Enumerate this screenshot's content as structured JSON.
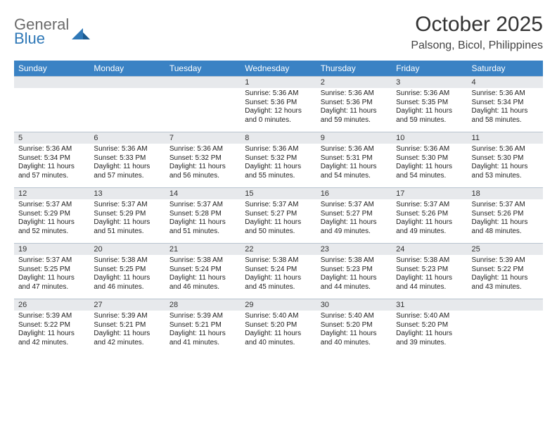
{
  "logo": {
    "line1": "General",
    "line2": "Blue"
  },
  "title": "October 2025",
  "location": "Palsong, Bicol, Philippines",
  "colors": {
    "header_bg": "#3a82c4",
    "header_text": "#ffffff",
    "daynum_bg": "#e7e9ec",
    "border": "#b9c4cf",
    "logo_gray": "#6b6b6b",
    "logo_blue": "#2f78b7"
  },
  "day_headers": [
    "Sunday",
    "Monday",
    "Tuesday",
    "Wednesday",
    "Thursday",
    "Friday",
    "Saturday"
  ],
  "weeks": [
    [
      {
        "n": "",
        "sr": "",
        "ss": "",
        "dl": ""
      },
      {
        "n": "",
        "sr": "",
        "ss": "",
        "dl": ""
      },
      {
        "n": "",
        "sr": "",
        "ss": "",
        "dl": ""
      },
      {
        "n": "1",
        "sr": "Sunrise: 5:36 AM",
        "ss": "Sunset: 5:36 PM",
        "dl": "Daylight: 12 hours and 0 minutes."
      },
      {
        "n": "2",
        "sr": "Sunrise: 5:36 AM",
        "ss": "Sunset: 5:36 PM",
        "dl": "Daylight: 11 hours and 59 minutes."
      },
      {
        "n": "3",
        "sr": "Sunrise: 5:36 AM",
        "ss": "Sunset: 5:35 PM",
        "dl": "Daylight: 11 hours and 59 minutes."
      },
      {
        "n": "4",
        "sr": "Sunrise: 5:36 AM",
        "ss": "Sunset: 5:34 PM",
        "dl": "Daylight: 11 hours and 58 minutes."
      }
    ],
    [
      {
        "n": "5",
        "sr": "Sunrise: 5:36 AM",
        "ss": "Sunset: 5:34 PM",
        "dl": "Daylight: 11 hours and 57 minutes."
      },
      {
        "n": "6",
        "sr": "Sunrise: 5:36 AM",
        "ss": "Sunset: 5:33 PM",
        "dl": "Daylight: 11 hours and 57 minutes."
      },
      {
        "n": "7",
        "sr": "Sunrise: 5:36 AM",
        "ss": "Sunset: 5:32 PM",
        "dl": "Daylight: 11 hours and 56 minutes."
      },
      {
        "n": "8",
        "sr": "Sunrise: 5:36 AM",
        "ss": "Sunset: 5:32 PM",
        "dl": "Daylight: 11 hours and 55 minutes."
      },
      {
        "n": "9",
        "sr": "Sunrise: 5:36 AM",
        "ss": "Sunset: 5:31 PM",
        "dl": "Daylight: 11 hours and 54 minutes."
      },
      {
        "n": "10",
        "sr": "Sunrise: 5:36 AM",
        "ss": "Sunset: 5:30 PM",
        "dl": "Daylight: 11 hours and 54 minutes."
      },
      {
        "n": "11",
        "sr": "Sunrise: 5:36 AM",
        "ss": "Sunset: 5:30 PM",
        "dl": "Daylight: 11 hours and 53 minutes."
      }
    ],
    [
      {
        "n": "12",
        "sr": "Sunrise: 5:37 AM",
        "ss": "Sunset: 5:29 PM",
        "dl": "Daylight: 11 hours and 52 minutes."
      },
      {
        "n": "13",
        "sr": "Sunrise: 5:37 AM",
        "ss": "Sunset: 5:29 PM",
        "dl": "Daylight: 11 hours and 51 minutes."
      },
      {
        "n": "14",
        "sr": "Sunrise: 5:37 AM",
        "ss": "Sunset: 5:28 PM",
        "dl": "Daylight: 11 hours and 51 minutes."
      },
      {
        "n": "15",
        "sr": "Sunrise: 5:37 AM",
        "ss": "Sunset: 5:27 PM",
        "dl": "Daylight: 11 hours and 50 minutes."
      },
      {
        "n": "16",
        "sr": "Sunrise: 5:37 AM",
        "ss": "Sunset: 5:27 PM",
        "dl": "Daylight: 11 hours and 49 minutes."
      },
      {
        "n": "17",
        "sr": "Sunrise: 5:37 AM",
        "ss": "Sunset: 5:26 PM",
        "dl": "Daylight: 11 hours and 49 minutes."
      },
      {
        "n": "18",
        "sr": "Sunrise: 5:37 AM",
        "ss": "Sunset: 5:26 PM",
        "dl": "Daylight: 11 hours and 48 minutes."
      }
    ],
    [
      {
        "n": "19",
        "sr": "Sunrise: 5:37 AM",
        "ss": "Sunset: 5:25 PM",
        "dl": "Daylight: 11 hours and 47 minutes."
      },
      {
        "n": "20",
        "sr": "Sunrise: 5:38 AM",
        "ss": "Sunset: 5:25 PM",
        "dl": "Daylight: 11 hours and 46 minutes."
      },
      {
        "n": "21",
        "sr": "Sunrise: 5:38 AM",
        "ss": "Sunset: 5:24 PM",
        "dl": "Daylight: 11 hours and 46 minutes."
      },
      {
        "n": "22",
        "sr": "Sunrise: 5:38 AM",
        "ss": "Sunset: 5:24 PM",
        "dl": "Daylight: 11 hours and 45 minutes."
      },
      {
        "n": "23",
        "sr": "Sunrise: 5:38 AM",
        "ss": "Sunset: 5:23 PM",
        "dl": "Daylight: 11 hours and 44 minutes."
      },
      {
        "n": "24",
        "sr": "Sunrise: 5:38 AM",
        "ss": "Sunset: 5:23 PM",
        "dl": "Daylight: 11 hours and 44 minutes."
      },
      {
        "n": "25",
        "sr": "Sunrise: 5:39 AM",
        "ss": "Sunset: 5:22 PM",
        "dl": "Daylight: 11 hours and 43 minutes."
      }
    ],
    [
      {
        "n": "26",
        "sr": "Sunrise: 5:39 AM",
        "ss": "Sunset: 5:22 PM",
        "dl": "Daylight: 11 hours and 42 minutes."
      },
      {
        "n": "27",
        "sr": "Sunrise: 5:39 AM",
        "ss": "Sunset: 5:21 PM",
        "dl": "Daylight: 11 hours and 42 minutes."
      },
      {
        "n": "28",
        "sr": "Sunrise: 5:39 AM",
        "ss": "Sunset: 5:21 PM",
        "dl": "Daylight: 11 hours and 41 minutes."
      },
      {
        "n": "29",
        "sr": "Sunrise: 5:40 AM",
        "ss": "Sunset: 5:20 PM",
        "dl": "Daylight: 11 hours and 40 minutes."
      },
      {
        "n": "30",
        "sr": "Sunrise: 5:40 AM",
        "ss": "Sunset: 5:20 PM",
        "dl": "Daylight: 11 hours and 40 minutes."
      },
      {
        "n": "31",
        "sr": "Sunrise: 5:40 AM",
        "ss": "Sunset: 5:20 PM",
        "dl": "Daylight: 11 hours and 39 minutes."
      },
      {
        "n": "",
        "sr": "",
        "ss": "",
        "dl": ""
      }
    ]
  ]
}
